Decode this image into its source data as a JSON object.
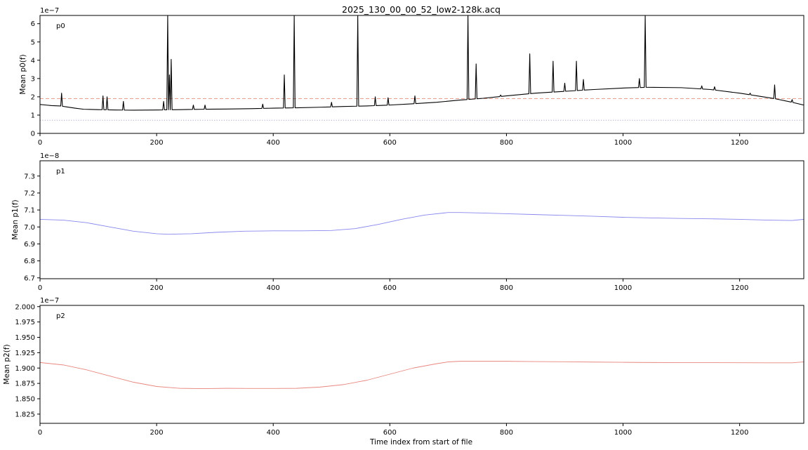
{
  "figure": {
    "title": "2025_130_00_00_52_low2-128k.acq",
    "xlabel": "Time index from start of file"
  },
  "chart_data": [
    {
      "type": "line",
      "panel_label": "p0",
      "ylabel": "Mean p0(f)",
      "offset_text": "1e−7",
      "xlim": [
        0,
        1310
      ],
      "ylim": [
        0,
        6.45
      ],
      "x_ticks": [
        0,
        200,
        400,
        600,
        800,
        1000,
        1200
      ],
      "x_tick_labels": [
        "0",
        "200",
        "400",
        "600",
        "800",
        "1000",
        "1200"
      ],
      "y_ticks": [
        0,
        1,
        2,
        3,
        4,
        5,
        6
      ],
      "y_tick_labels": [
        "0",
        "1",
        "2",
        "3",
        "4",
        "5",
        "6"
      ],
      "grid": false,
      "series": [
        {
          "color": "#000000",
          "baseline": {
            "x": [
              0,
              10,
              20,
              35,
              45,
              60,
              75,
              100,
              130,
              160,
              200,
              240,
              280,
              320,
              360,
              400,
              440,
              480,
              520,
              560,
              600,
              640,
              680,
              720,
              760,
              800,
              850,
              900,
              950,
              1000,
              1040,
              1100,
              1150,
              1200,
              1230,
              1260,
              1290,
              1310
            ],
            "y": [
              1.58,
              1.55,
              1.52,
              1.5,
              1.45,
              1.38,
              1.32,
              1.3,
              1.28,
              1.27,
              1.28,
              1.3,
              1.32,
              1.33,
              1.35,
              1.38,
              1.4,
              1.43,
              1.47,
              1.5,
              1.55,
              1.62,
              1.7,
              1.82,
              1.92,
              2.05,
              2.2,
              2.3,
              2.4,
              2.48,
              2.52,
              2.5,
              2.4,
              2.2,
              2.05,
              1.9,
              1.7,
              1.55
            ]
          },
          "peaks": [
            {
              "x": 37,
              "y": 2.2
            },
            {
              "x": 108,
              "y": 2.05
            },
            {
              "x": 115,
              "y": 2.0
            },
            {
              "x": 143,
              "y": 1.75
            },
            {
              "x": 212,
              "y": 1.75
            },
            {
              "x": 219,
              "y": 6.45
            },
            {
              "x": 222,
              "y": 3.2
            },
            {
              "x": 225,
              "y": 4.05
            },
            {
              "x": 263,
              "y": 1.55
            },
            {
              "x": 283,
              "y": 1.55
            },
            {
              "x": 382,
              "y": 1.6
            },
            {
              "x": 419,
              "y": 3.2
            },
            {
              "x": 436,
              "y": 6.45
            },
            {
              "x": 500,
              "y": 1.7
            },
            {
              "x": 545,
              "y": 6.45
            },
            {
              "x": 575,
              "y": 2.0
            },
            {
              "x": 597,
              "y": 1.95
            },
            {
              "x": 643,
              "y": 2.05
            },
            {
              "x": 734,
              "y": 6.45
            },
            {
              "x": 748,
              "y": 3.8
            },
            {
              "x": 790,
              "y": 2.1
            },
            {
              "x": 840,
              "y": 4.35
            },
            {
              "x": 880,
              "y": 3.95
            },
            {
              "x": 900,
              "y": 2.75
            },
            {
              "x": 920,
              "y": 3.95
            },
            {
              "x": 932,
              "y": 2.95
            },
            {
              "x": 1028,
              "y": 3.0
            },
            {
              "x": 1038,
              "y": 6.45
            },
            {
              "x": 1135,
              "y": 2.6
            },
            {
              "x": 1157,
              "y": 2.55
            },
            {
              "x": 1187,
              "y": 2.25
            },
            {
              "x": 1218,
              "y": 2.2
            },
            {
              "x": 1260,
              "y": 2.65
            },
            {
              "x": 1290,
              "y": 1.85
            }
          ]
        }
      ],
      "reference_lines": [
        {
          "y": 1.9,
          "style": "dashed",
          "color": "#e8a08f"
        },
        {
          "y": 0.72,
          "style": "dotted",
          "color": "#a6a6cc"
        }
      ]
    },
    {
      "type": "line",
      "panel_label": "p1",
      "ylabel": "Mean p1(f)",
      "offset_text": "1e−8",
      "xlim": [
        0,
        1310
      ],
      "ylim": [
        6.695,
        7.39
      ],
      "x_ticks": [
        0,
        200,
        400,
        600,
        800,
        1000,
        1200
      ],
      "x_tick_labels": [
        "0",
        "200",
        "400",
        "600",
        "800",
        "1000",
        "1200"
      ],
      "y_ticks": [
        6.7,
        6.8,
        6.9,
        7.0,
        7.1,
        7.2,
        7.3
      ],
      "y_tick_labels": [
        "6.7",
        "6.8",
        "6.9",
        "7.0",
        "7.1",
        "7.2",
        "7.3"
      ],
      "grid": false,
      "series": [
        {
          "color": "#8888ee",
          "x": [
            0,
            40,
            80,
            120,
            160,
            200,
            220,
            260,
            300,
            350,
            400,
            450,
            500,
            540,
            580,
            620,
            660,
            700,
            720,
            760,
            800,
            850,
            900,
            950,
            1000,
            1050,
            1100,
            1150,
            1200,
            1250,
            1290,
            1310
          ],
          "y": [
            7.045,
            7.04,
            7.025,
            7.0,
            6.975,
            6.96,
            6.957,
            6.96,
            6.968,
            6.975,
            6.977,
            6.977,
            6.979,
            6.99,
            7.015,
            7.045,
            7.07,
            7.085,
            7.085,
            7.082,
            7.078,
            7.073,
            7.068,
            7.063,
            7.057,
            7.053,
            7.05,
            7.048,
            7.045,
            7.04,
            7.038,
            7.045
          ]
        }
      ]
    },
    {
      "type": "line",
      "panel_label": "p2",
      "ylabel": "Mean p2(f)",
      "offset_text": "1e−7",
      "xlim": [
        0,
        1310
      ],
      "ylim": [
        1.81,
        2.002
      ],
      "x_ticks": [
        0,
        200,
        400,
        600,
        800,
        1000,
        1200
      ],
      "x_tick_labels": [
        "0",
        "200",
        "400",
        "600",
        "800",
        "1000",
        "1200"
      ],
      "y_ticks": [
        1.825,
        1.85,
        1.875,
        1.9,
        1.925,
        1.95,
        1.975,
        2.0
      ],
      "y_tick_labels": [
        "1.825",
        "1.850",
        "1.875",
        "1.900",
        "1.925",
        "1.950",
        "1.975",
        "2.000"
      ],
      "grid": false,
      "series": [
        {
          "color": "#e8877f",
          "x": [
            0,
            40,
            80,
            120,
            160,
            200,
            240,
            280,
            320,
            360,
            400,
            440,
            480,
            520,
            560,
            600,
            640,
            680,
            700,
            720,
            760,
            800,
            850,
            900,
            950,
            1000,
            1050,
            1100,
            1150,
            1200,
            1250,
            1290,
            1310
          ],
          "y": [
            1.909,
            1.905,
            1.897,
            1.887,
            1.877,
            1.87,
            1.867,
            1.8665,
            1.867,
            1.8668,
            1.8668,
            1.867,
            1.869,
            1.873,
            1.88,
            1.89,
            1.9,
            1.907,
            1.91,
            1.911,
            1.911,
            1.911,
            1.9105,
            1.9102,
            1.9097,
            1.9093,
            1.909,
            1.9088,
            1.9088,
            1.9087,
            1.9085,
            1.9085,
            1.91
          ]
        }
      ]
    }
  ]
}
